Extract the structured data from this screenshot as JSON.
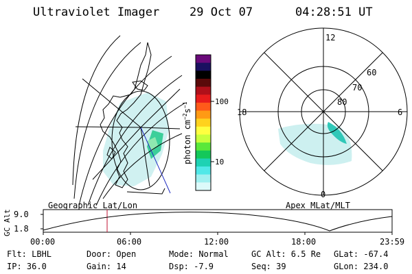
{
  "header": {
    "title": "Ultraviolet Imager",
    "date": "29 Oct 07",
    "time": "04:28:51 UT"
  },
  "colorbar": {
    "unit_label": "photon cm",
    "unit_sup": "−2",
    "unit_s": "s",
    "unit_sup2": "−1",
    "ticks": [
      "100",
      "10"
    ],
    "colors": [
      "#6a0a7a",
      "#1a1060",
      "#000000",
      "#5a0a0a",
      "#b0101a",
      "#e81c1c",
      "#ff5a1a",
      "#ff9a14",
      "#ffd21e",
      "#ffff40",
      "#c8ff3c",
      "#5ae83a",
      "#14c85a",
      "#1ed2b4",
      "#50e8e8",
      "#a0f0f0",
      "#dcfafa"
    ]
  },
  "polar": {
    "hour_labels": [
      "12",
      "18",
      "6",
      "0"
    ],
    "lat_labels": [
      "60",
      "70",
      "80"
    ]
  },
  "map_labels": {
    "left": "Geographic Lat/Lon",
    "right": "Apex MLat/MLT"
  },
  "timeline": {
    "ylabel": "GC Alt",
    "yticks": [
      "9.0",
      "1.8"
    ],
    "xticks": [
      "00:00",
      "06:00",
      "12:00",
      "18:00",
      "23:59"
    ]
  },
  "footer": {
    "flt": "Flt: LBHL",
    "door": "Door: Open",
    "mode": "Mode: Normal",
    "gcalt": "GC Alt: 6.5 Re",
    "glat": "GLat: -67.4",
    "ip": "IP: 36.0",
    "gain": "Gain: 14",
    "dsp": "Dsp:   -7.9",
    "seq": "Seq: 39",
    "glon": "GLon: 234.0"
  }
}
